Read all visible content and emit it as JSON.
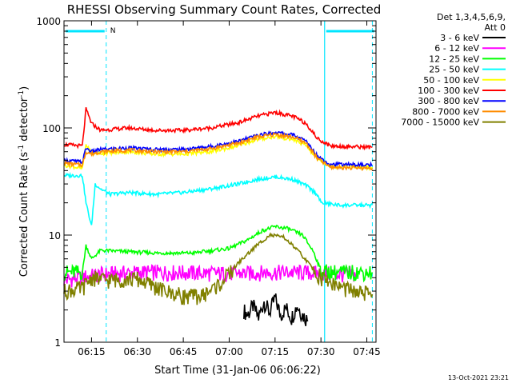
{
  "chart_data": {
    "type": "line",
    "title": "RHESSI Observing Summary Count Rates, Corrected",
    "xlabel": "Start Time (31-Jan-06 06:06:22)",
    "ylabel_main": "Corrected Count Rate (s",
    "ylabel_sup1": "-1",
    "ylabel_mid": " detector",
    "ylabel_sup2": "-1",
    "ylabel_end": ")",
    "footer": "13-Oct-2021 23:21",
    "x_range_min": [
      6.1,
      7.8
    ],
    "y_scale": "log",
    "ylim": [
      1,
      1000
    ],
    "x_ticks": [
      {
        "label": "06:15",
        "t": 6.25
      },
      {
        "label": "06:30",
        "t": 6.5
      },
      {
        "label": "06:45",
        "t": 6.75
      },
      {
        "label": "07:00",
        "t": 7.0
      },
      {
        "label": "07:15",
        "t": 7.25
      },
      {
        "label": "07:30",
        "t": 7.5
      },
      {
        "label": "07:45",
        "t": 7.75
      }
    ],
    "y_ticks": [
      {
        "label": "1",
        "v": 1
      },
      {
        "label": "10",
        "v": 10
      },
      {
        "label": "100",
        "v": 100
      },
      {
        "label": "1000",
        "v": 1000
      }
    ],
    "legend": {
      "header_line1": "Det 1,3,4,5,6,9,",
      "header_line2": "Att 0",
      "position": "right"
    },
    "annotations": {
      "night_flag_label": "N",
      "night_flag_level": 800,
      "night_intervals": [
        [
          6.1,
          6.33
        ],
        [
          7.52,
          7.8
        ]
      ],
      "saa_boundaries": [
        6.33,
        7.78
      ],
      "night_boundary": 7.52
    },
    "series": [
      {
        "name": "3 - 6 keV",
        "color": "#000000",
        "points": [
          [
            7.08,
            2.0
          ],
          [
            7.1,
            1.8
          ],
          [
            7.13,
            2.2
          ],
          [
            7.16,
            1.7
          ],
          [
            7.19,
            2.4
          ],
          [
            7.22,
            1.9
          ],
          [
            7.25,
            2.6
          ],
          [
            7.28,
            1.8
          ],
          [
            7.31,
            2.1
          ],
          [
            7.34,
            1.7
          ],
          [
            7.37,
            2.2
          ],
          [
            7.4,
            1.8
          ],
          [
            7.43,
            1.6
          ]
        ]
      },
      {
        "name": "6 - 12 keV",
        "color": "#ff00ff",
        "points": [
          [
            6.1,
            3.8
          ],
          [
            6.3,
            4.3
          ],
          [
            6.5,
            4.5
          ],
          [
            6.7,
            4.5
          ],
          [
            6.9,
            4.4
          ],
          [
            7.1,
            4.4
          ],
          [
            7.2,
            4.5
          ],
          [
            7.3,
            4.5
          ],
          [
            7.4,
            4.5
          ],
          [
            7.5,
            4.4
          ],
          [
            7.6,
            4.3
          ],
          [
            7.7,
            4.3
          ]
        ]
      },
      {
        "name": "12 - 25 keV",
        "color": "#00ff00",
        "points": [
          [
            6.1,
            4.5
          ],
          [
            6.2,
            4.5
          ],
          [
            6.22,
            8
          ],
          [
            6.25,
            6
          ],
          [
            6.3,
            7.2
          ],
          [
            6.45,
            7.0
          ],
          [
            6.6,
            6.8
          ],
          [
            6.8,
            6.8
          ],
          [
            7.0,
            7.5
          ],
          [
            7.1,
            9
          ],
          [
            7.18,
            11
          ],
          [
            7.25,
            12
          ],
          [
            7.32,
            11.5
          ],
          [
            7.4,
            10
          ],
          [
            7.46,
            7
          ],
          [
            7.5,
            4.6
          ],
          [
            7.6,
            4.5
          ],
          [
            7.78,
            4.5
          ]
        ]
      },
      {
        "name": "25 - 50 keV",
        "color": "#00ffff",
        "points": [
          [
            6.1,
            36
          ],
          [
            6.2,
            36
          ],
          [
            6.22,
            20
          ],
          [
            6.25,
            12
          ],
          [
            6.27,
            30
          ],
          [
            6.3,
            27
          ],
          [
            6.35,
            24
          ],
          [
            6.45,
            25
          ],
          [
            6.6,
            24
          ],
          [
            6.75,
            25
          ],
          [
            6.9,
            27
          ],
          [
            7.05,
            30
          ],
          [
            7.15,
            33
          ],
          [
            7.25,
            35
          ],
          [
            7.35,
            33
          ],
          [
            7.42,
            29
          ],
          [
            7.48,
            24
          ],
          [
            7.5,
            20
          ],
          [
            7.6,
            19
          ],
          [
            7.78,
            19
          ]
        ]
      },
      {
        "name": "50 - 100 keV",
        "color": "#ffff00",
        "points": [
          [
            6.1,
            45
          ],
          [
            6.2,
            42
          ],
          [
            6.22,
            70
          ],
          [
            6.25,
            58
          ],
          [
            6.3,
            58
          ],
          [
            6.45,
            60
          ],
          [
            6.6,
            57
          ],
          [
            6.75,
            57
          ],
          [
            6.9,
            60
          ],
          [
            7.05,
            68
          ],
          [
            7.15,
            78
          ],
          [
            7.25,
            83
          ],
          [
            7.35,
            78
          ],
          [
            7.42,
            68
          ],
          [
            7.48,
            52
          ],
          [
            7.55,
            44
          ],
          [
            7.78,
            43
          ]
        ]
      },
      {
        "name": "100 - 300 keV",
        "color": "#ff0000",
        "points": [
          [
            6.1,
            70
          ],
          [
            6.2,
            68
          ],
          [
            6.22,
            150
          ],
          [
            6.25,
            110
          ],
          [
            6.3,
            95
          ],
          [
            6.45,
            100
          ],
          [
            6.6,
            95
          ],
          [
            6.75,
            95
          ],
          [
            6.9,
            100
          ],
          [
            7.05,
            112
          ],
          [
            7.15,
            128
          ],
          [
            7.25,
            140
          ],
          [
            7.35,
            128
          ],
          [
            7.42,
            110
          ],
          [
            7.48,
            80
          ],
          [
            7.55,
            68
          ],
          [
            7.78,
            66
          ]
        ]
      },
      {
        "name": "300 - 800 keV",
        "color": "#0000ff",
        "points": [
          [
            6.1,
            50
          ],
          [
            6.2,
            48
          ],
          [
            6.22,
            65
          ],
          [
            6.25,
            60
          ],
          [
            6.3,
            63
          ],
          [
            6.45,
            65
          ],
          [
            6.6,
            63
          ],
          [
            6.75,
            63
          ],
          [
            6.9,
            67
          ],
          [
            7.05,
            75
          ],
          [
            7.15,
            85
          ],
          [
            7.25,
            91
          ],
          [
            7.35,
            86
          ],
          [
            7.42,
            75
          ],
          [
            7.48,
            55
          ],
          [
            7.55,
            46
          ],
          [
            7.78,
            45
          ]
        ]
      },
      {
        "name": "800 - 7000 keV",
        "color": "#ff8c00",
        "points": [
          [
            6.1,
            47
          ],
          [
            6.2,
            45
          ],
          [
            6.22,
            60
          ],
          [
            6.25,
            57
          ],
          [
            6.3,
            60
          ],
          [
            6.45,
            62
          ],
          [
            6.6,
            60
          ],
          [
            6.75,
            60
          ],
          [
            6.9,
            64
          ],
          [
            7.05,
            72
          ],
          [
            7.15,
            82
          ],
          [
            7.25,
            87
          ],
          [
            7.35,
            82
          ],
          [
            7.42,
            72
          ],
          [
            7.48,
            52
          ],
          [
            7.55,
            43
          ],
          [
            7.78,
            42
          ]
        ]
      },
      {
        "name": "7000 - 15000 keV",
        "color": "#808000",
        "points": [
          [
            6.1,
            3.0
          ],
          [
            6.2,
            3.2
          ],
          [
            6.25,
            4.0
          ],
          [
            6.33,
            3.8
          ],
          [
            6.5,
            3.9
          ],
          [
            6.65,
            3.0
          ],
          [
            6.75,
            2.7
          ],
          [
            6.85,
            2.7
          ],
          [
            6.95,
            3.5
          ],
          [
            7.05,
            5.5
          ],
          [
            7.15,
            8
          ],
          [
            7.22,
            10
          ],
          [
            7.3,
            9.5
          ],
          [
            7.38,
            7
          ],
          [
            7.45,
            5
          ],
          [
            7.5,
            4.0
          ],
          [
            7.6,
            3.3
          ],
          [
            7.7,
            2.9
          ],
          [
            7.78,
            2.8
          ]
        ]
      }
    ]
  }
}
